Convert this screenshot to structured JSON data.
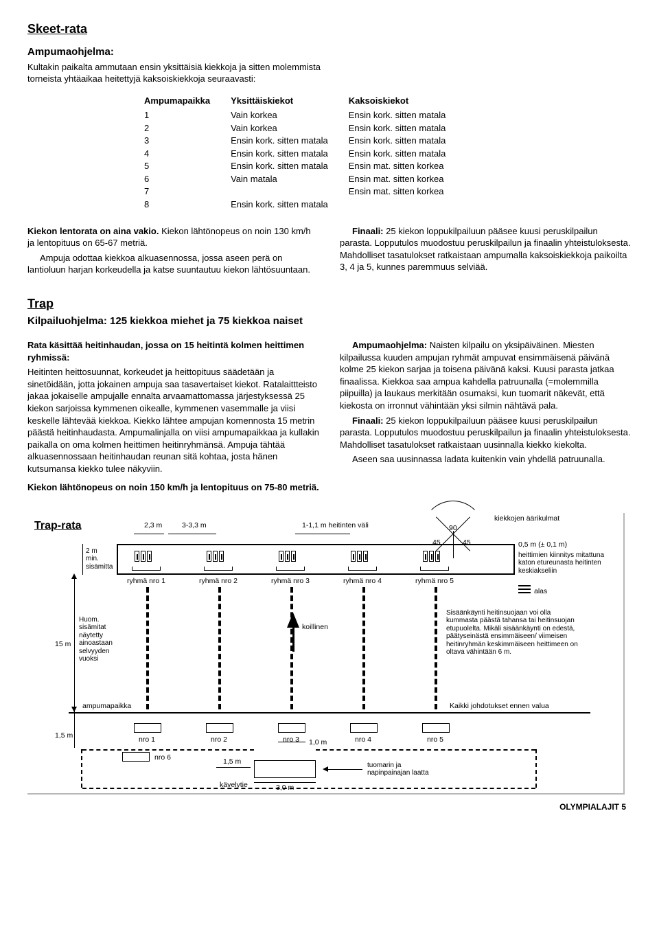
{
  "skeet": {
    "title": "Skeet-rata",
    "program_title": "Ampumaohjelma:",
    "intro": "Kultakin paikalta ammutaan ensin yksittäisiä kiekkoja ja sitten molemmista torneista yhtäaikaa heitettyjä kaksoiskiekkoja seuraavasti:",
    "headers": {
      "col1": "Ampumapaikka",
      "col2": "Yksittäiskiekot",
      "col3": "Kaksoiskiekot"
    },
    "rows": [
      {
        "n": "1",
        "single": "Vain korkea",
        "double": "Ensin kork. sitten matala"
      },
      {
        "n": "2",
        "single": "Vain korkea",
        "double": "Ensin kork. sitten matala"
      },
      {
        "n": "3",
        "single": "Ensin kork. sitten matala",
        "double": "Ensin kork. sitten matala"
      },
      {
        "n": "4",
        "single": "Ensin kork. sitten matala",
        "double": "Ensin kork. sitten matala"
      },
      {
        "n": "5",
        "single": "Ensin kork. sitten matala",
        "double": "Ensin mat. sitten korkea"
      },
      {
        "n": "6",
        "single": "Vain matala",
        "double": "Ensin mat. sitten korkea"
      },
      {
        "n": "7",
        "single": "",
        "double": "Ensin mat. sitten korkea"
      },
      {
        "n": "8",
        "single": "Ensin kork. sitten matala",
        "double": ""
      }
    ],
    "left_p1_bold": "Kiekon lentorata on aina vakio.",
    "left_p1_rest": " Kiekon lähtönopeus on noin 130 km/h ja lentopituus on 65-67 metriä.",
    "left_p2": "Ampuja odottaa kiekkoa alkuasennossa, jossa aseen perä on lantioluun harjan korkeudella ja katse suuntautuu kiekon lähtösuuntaan.",
    "right_bold": "Finaali:",
    "right_rest": " 25 kiekon loppukilpailuun pääsee kuusi peruskilpailun parasta. Lopputulos muodostuu peruskilpailun ja finaalin yhteistuloksesta. Mahdolliset tasatulokset ratkaistaan ampumalla kaksoiskiekkoja paikoilta 3, 4 ja 5, kunnes paremmuus selviää."
  },
  "trap": {
    "title": "Trap",
    "subtitle": "Kilpailuohjelma: 125 kiekkoa miehet ja 75 kiekkoa naiset",
    "left_h": "Rata käsittää heitinhaudan, jossa on 15 heitintä kolmen heittimen ryhmissä:",
    "left_p1": "Heitinten heittosuunnat, korkeudet ja heittopituus säädetään ja sinetöidään, jotta jokainen ampuja saa tasavertaiset kiekot. Ratalaittteisto jakaa jokaiselle ampujalle ennalta arvaamattomassa järjestyksessä 25 kiekon sarjoissa kymmenen oikealle, kymmenen vasemmalle ja viisi keskelle lähtevää kiekkoa. Kiekko lähtee ampujan komennosta 15 metrin päästä heitinhaudasta. Ampumalinjalla on viisi ampumapaikkaa ja kullakin paikalla on oma kolmen heittimen heitinryhmänsä. Ampuja tähtää alkuasennossaan heitinhaudan reunan sitä kohtaa, josta hänen kutsumansa kiekko tulee näkyviin.",
    "left_h2": "Kiekon lähtönopeus on noin 150 km/h ja lentopituus on 75-80 metriä.",
    "right_bold1": "Ampumaohjelma:",
    "right_p1": " Naisten kilpailu on yksipäiväinen. Miesten kilpailussa kuuden ampujan ryhmät ampuvat ensimmäisenä päivänä kolme 25 kiekon sarjaa ja toisena päivänä kaksi. Kuusi parasta jatkaa finaalissa. Kiekkoa saa ampua kahdella patruunalla (=molemmilla piipuilla) ja laukaus merkitään osumaksi, kun tuomarit näkevät, että kiekosta on irronnut vähintään yksi silmin nähtävä pala.",
    "right_bold2": "Finaali:",
    "right_p2": " 25 kiekon loppukilpailuun pääsee kuusi peruskilpailun parasta. Lopputulos muodostuu peruskilpailun ja finaalin yhteistuloksesta. Mahdolliset tasatulokset ratkaistaan uusinnalla kiekko kiekolta.",
    "right_p3": "Aseen saa uusinnassa ladata kuitenkin vain yhdellä patruunalla."
  },
  "diagram": {
    "title": "Trap-rata",
    "labels": {
      "d23": "2,3 m",
      "d33": "3-3,3 m",
      "d11": "1-1,1 m heitinten väli",
      "d90": "90",
      "d45a": "45",
      "d45b": "45",
      "kiek": "kiekkojen äärikulmat",
      "d05": "0,5 m (± 0,1 m)",
      "kiinn": "heittimien kiinnitys mitattuna katon etureunasta heitinten keskiakseliin",
      "alas": "alas",
      "d2m": "2 m\nmin.\nsisämitta",
      "g1": "ryhmä nro 1",
      "g2": "ryhmä nro 2",
      "g3": "ryhmä nro 3",
      "g4": "ryhmä nro 4",
      "g5": "ryhmä nro 5",
      "huom": "Huom.\nsisämitat\nnäytetty\nainoastaan\nselvyyden\nvuoksi",
      "d15": "15 m",
      "koill": "koillinen",
      "sisaan": "Sisäänkäynti heitinsuojaan voi olla kummasta päästä tahansa tai heitinsuojan etupuolelta. Mikäli sisäänkäynti on edestä, päätyseinästä ensimmäiseen/ viimeisen heitinryhmän keskimmäiseen heittimeen on oltava vähintään 6 m.",
      "ampp": "ampumapaikka",
      "johd": "Kaikki johdotukset ennen valua",
      "d15b": "1,5 m",
      "n1": "nro 1",
      "n2": "nro 2",
      "n3": "nro 3",
      "n4": "nro 4",
      "n5": "nro 5",
      "n6": "nro 6",
      "d10": "1,0 m",
      "d15c": "1,5 m",
      "kavely": "kävelytie",
      "d30": "3,0 m",
      "tuom": "tuomarin ja\nnapinpainajan laatta"
    }
  },
  "footer": "OLYMPIALAJIT 5"
}
